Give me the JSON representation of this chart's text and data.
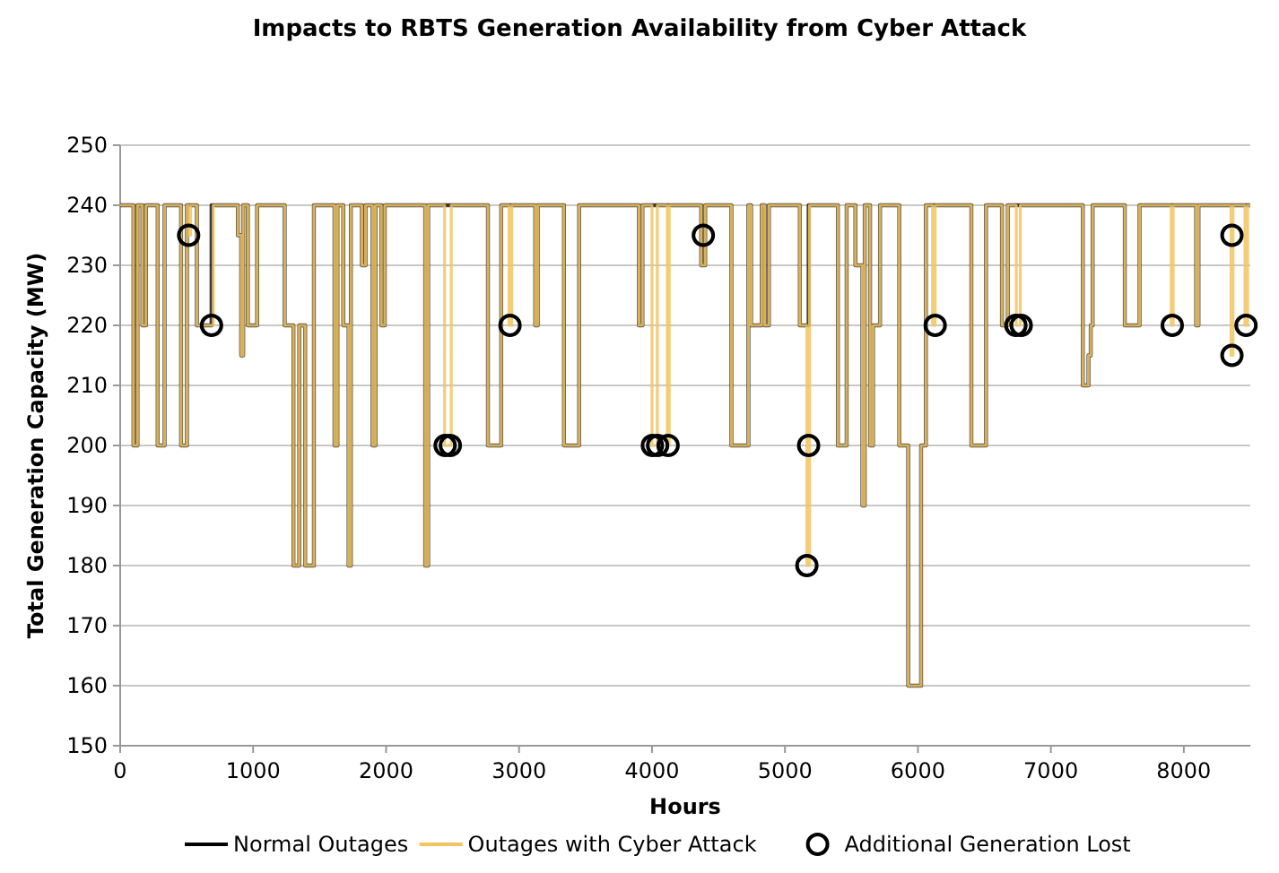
{
  "chart_data": {
    "type": "step",
    "title": "Impacts to RBTS Generation Availability from Cyber Attack",
    "xlabel": "Hours",
    "ylabel": "Total Generation Capacity (MW)",
    "xlim": [
      0,
      8500
    ],
    "xticks": [
      0,
      1000,
      2000,
      3000,
      4000,
      5000,
      6000,
      7000,
      8000
    ],
    "ylim": [
      150,
      250
    ],
    "yticks": [
      150,
      160,
      170,
      180,
      190,
      200,
      210,
      220,
      230,
      240,
      250
    ],
    "grid": "y",
    "legend": "bottom",
    "line_style": "solid",
    "series": [
      {
        "name": "Normal Outages",
        "color": "#000000",
        "x": [
          0,
          100,
          130,
          167,
          194,
          282,
          334,
          458,
          502,
          577,
          687,
          885,
          910,
          925,
          960,
          1030,
          1237,
          1303,
          1347,
          1391,
          1457,
          1612,
          1634,
          1678,
          1718,
          1735,
          1818,
          1845,
          1898,
          1920,
          1964,
          1990,
          2294,
          2316,
          2766,
          2866,
          3122,
          3140,
          3338,
          3452,
          3902,
          3928,
          4370,
          4400,
          4597,
          4725,
          4745,
          4825,
          4848,
          4879,
          5112,
          5178,
          5398,
          5464,
          5530,
          5583,
          5600,
          5640,
          5662,
          5715,
          5860,
          5927,
          6024,
          6060,
          6402,
          6512,
          6632,
          6676,
          7240,
          7283,
          7300,
          7314,
          7556,
          7667,
          8093,
          8110,
          8500
        ],
        "values": [
          240,
          200,
          240,
          220,
          240,
          200,
          240,
          200,
          240,
          220,
          240,
          235,
          215,
          240,
          220,
          240,
          220,
          180,
          220,
          180,
          240,
          200,
          240,
          220,
          180,
          240,
          230,
          240,
          200,
          240,
          220,
          240,
          180,
          240,
          200,
          240,
          220,
          240,
          200,
          240,
          220,
          240,
          230,
          240,
          200,
          240,
          220,
          240,
          220,
          240,
          220,
          240,
          200,
          240,
          230,
          190,
          240,
          200,
          220,
          240,
          200,
          160,
          200,
          240,
          200,
          240,
          220,
          240,
          210,
          215,
          220,
          240,
          220,
          240,
          220,
          240,
          240
        ]
      },
      {
        "name": "Outages with Cyber Attack",
        "color": "#f2c462",
        "x": [
          0,
          100,
          130,
          167,
          194,
          282,
          334,
          458,
          502,
          515,
          530,
          577,
          700,
          885,
          910,
          925,
          960,
          1030,
          1237,
          1303,
          1347,
          1391,
          1457,
          1612,
          1634,
          1678,
          1718,
          1735,
          1818,
          1845,
          1898,
          1920,
          1964,
          1990,
          2294,
          2316,
          2440,
          2490,
          2766,
          2866,
          2925,
          2945,
          3122,
          3140,
          3338,
          3452,
          3902,
          3928,
          4000,
          4040,
          4115,
          4130,
          4370,
          4400,
          4597,
          4725,
          4745,
          4825,
          4848,
          4879,
          5112,
          5165,
          5185,
          5398,
          5464,
          5530,
          5583,
          5600,
          5640,
          5662,
          5715,
          5860,
          5927,
          6024,
          6060,
          6110,
          6130,
          6402,
          6512,
          6632,
          6676,
          6740,
          6770,
          7240,
          7283,
          7300,
          7314,
          7556,
          7667,
          7905,
          7920,
          8093,
          8110,
          8355,
          8370,
          8460,
          8480,
          8500
        ],
        "values": [
          240,
          200,
          240,
          220,
          240,
          200,
          240,
          200,
          240,
          235,
          240,
          220,
          240,
          235,
          215,
          240,
          220,
          240,
          220,
          180,
          220,
          180,
          240,
          200,
          240,
          220,
          180,
          240,
          230,
          240,
          200,
          240,
          220,
          240,
          180,
          240,
          200,
          240,
          200,
          240,
          220,
          240,
          220,
          240,
          200,
          240,
          220,
          240,
          200,
          240,
          200,
          240,
          230,
          240,
          200,
          240,
          220,
          240,
          220,
          240,
          220,
          180,
          240,
          200,
          240,
          230,
          190,
          240,
          200,
          220,
          240,
          200,
          160,
          200,
          240,
          220,
          240,
          200,
          240,
          220,
          240,
          220,
          240,
          210,
          215,
          220,
          240,
          220,
          240,
          220,
          240,
          220,
          240,
          215,
          240,
          220,
          240,
          240
        ]
      },
      {
        "name": "Additional Generation Lost",
        "type": "scatter",
        "marker": "circle",
        "color": "#000000",
        "x": [
          515,
          687,
          2444,
          2483,
          2932,
          4003,
          4042,
          4121,
          4386,
          5178,
          5165,
          6130,
          6737,
          6777,
          7913,
          8362,
          8362,
          8468
        ],
        "values": [
          235,
          220,
          200,
          200,
          220,
          200,
          200,
          200,
          235,
          200,
          180,
          220,
          220,
          220,
          220,
          235,
          215,
          220
        ]
      }
    ]
  }
}
